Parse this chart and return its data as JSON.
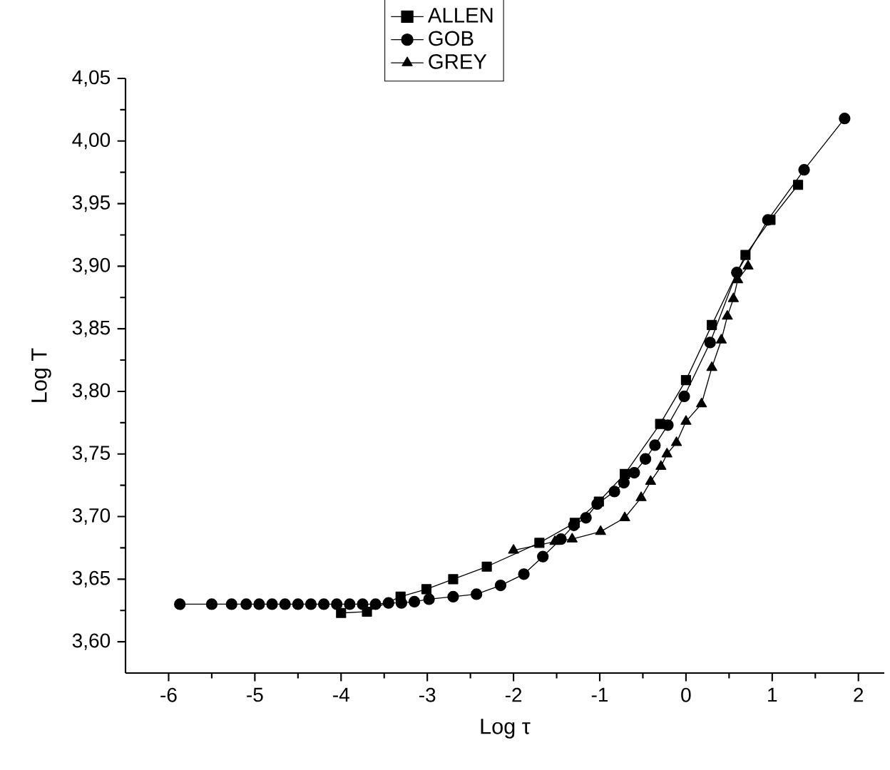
{
  "chart_data": {
    "type": "line",
    "xlabel": "Log τ",
    "ylabel": "Log T",
    "xlim": [
      -6.5,
      2.3
    ],
    "ylim": [
      3.575,
      4.05
    ],
    "xticks": [
      -6,
      -5,
      -4,
      -3,
      -2,
      -1,
      0,
      1,
      2
    ],
    "yticks": [
      {
        "value": 3.6,
        "label": "3,60"
      },
      {
        "value": 3.65,
        "label": "3,65"
      },
      {
        "value": 3.7,
        "label": "3,70"
      },
      {
        "value": 3.75,
        "label": "3,75"
      },
      {
        "value": 3.8,
        "label": "3,80"
      },
      {
        "value": 3.85,
        "label": "3,85"
      },
      {
        "value": 3.9,
        "label": "3,90"
      },
      {
        "value": 3.95,
        "label": "3,95"
      },
      {
        "value": 4.0,
        "label": "4,00"
      },
      {
        "value": 4.05,
        "label": "4,05"
      }
    ],
    "grid": false,
    "legend": "top",
    "series": [
      {
        "name": "ALLEN",
        "color": "#000000",
        "marker": "square",
        "x": [
          -4.0,
          -3.7,
          -3.31,
          -3.01,
          -2.7,
          -2.31,
          -1.7,
          -1.29,
          -1.01,
          -0.71,
          -0.3,
          0.0,
          0.3,
          0.69,
          0.98,
          1.3
        ],
        "values": [
          3.623,
          3.624,
          3.636,
          3.642,
          3.65,
          3.66,
          3.679,
          3.695,
          3.712,
          3.734,
          3.774,
          3.809,
          3.853,
          3.909,
          3.937,
          3.965
        ]
      },
      {
        "name": "GOB",
        "color": "#000000",
        "marker": "circle",
        "x": [
          -5.87,
          -5.5,
          -5.27,
          -5.1,
          -4.95,
          -4.8,
          -4.65,
          -4.5,
          -4.35,
          -4.2,
          -4.05,
          -3.9,
          -3.75,
          -3.6,
          -3.45,
          -3.3,
          -3.15,
          -2.98,
          -2.7,
          -2.43,
          -2.15,
          -1.88,
          -1.66,
          -1.45,
          -1.3,
          -1.16,
          -1.03,
          -0.83,
          -0.72,
          -0.6,
          -0.47,
          -0.36,
          -0.21,
          -0.02,
          0.28,
          0.59,
          0.95,
          1.37,
          1.84
        ],
        "values": [
          3.63,
          3.63,
          3.63,
          3.63,
          3.63,
          3.63,
          3.63,
          3.63,
          3.63,
          3.63,
          3.63,
          3.63,
          3.63,
          3.63,
          3.631,
          3.631,
          3.632,
          3.634,
          3.636,
          3.638,
          3.645,
          3.654,
          3.668,
          3.682,
          3.693,
          3.699,
          3.71,
          3.72,
          3.727,
          3.735,
          3.746,
          3.757,
          3.773,
          3.796,
          3.839,
          3.895,
          3.937,
          3.977,
          4.018
        ]
      },
      {
        "name": "GREY",
        "color": "#000000",
        "marker": "triangle",
        "x": [
          -2.0,
          -1.52,
          -1.32,
          -0.99,
          -0.71,
          -0.52,
          -0.41,
          -0.29,
          -0.22,
          -0.11,
          0.0,
          0.18,
          0.3,
          0.41,
          0.48,
          0.55,
          0.6,
          0.72
        ],
        "values": [
          3.673,
          3.68,
          3.682,
          3.688,
          3.699,
          3.715,
          3.728,
          3.74,
          3.75,
          3.759,
          3.776,
          3.79,
          3.819,
          3.841,
          3.86,
          3.874,
          3.889,
          3.9
        ]
      }
    ]
  }
}
